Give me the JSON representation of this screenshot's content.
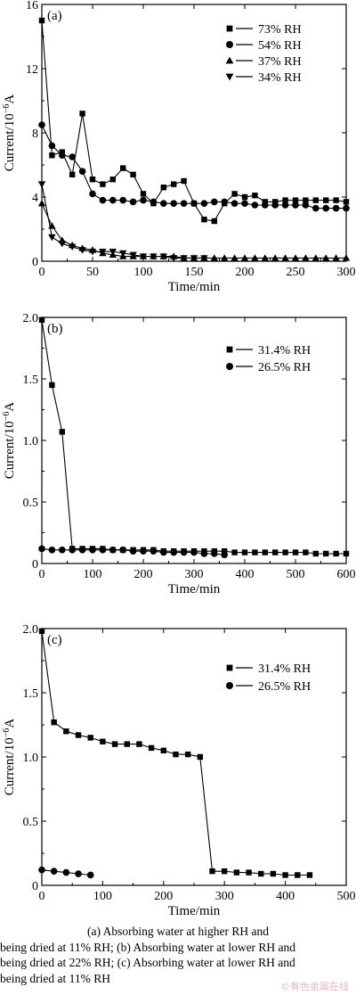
{
  "chart_data": [
    {
      "type": "line",
      "panel_label": "(a)",
      "xlabel": "Time/min",
      "ylabel": "Current/10",
      "ylabel_exp": "−6",
      "ylabel_unit": "A",
      "xlim": [
        0,
        300
      ],
      "ylim": [
        0,
        16
      ],
      "xticks": [
        0,
        50,
        100,
        150,
        200,
        250,
        300
      ],
      "yticks": [
        0,
        4,
        8,
        12,
        16
      ],
      "ytick_labels": [
        "0",
        "4",
        "8",
        "12",
        "16"
      ],
      "legend": "top-right",
      "series": [
        {
          "name": "73% RH",
          "marker": "square",
          "x": [
            0,
            10,
            20,
            30,
            40,
            50,
            60,
            70,
            80,
            90,
            100,
            110,
            120,
            130,
            140,
            150,
            160,
            170,
            180,
            190,
            200,
            210,
            220,
            230,
            240,
            250,
            260,
            270,
            280,
            290,
            300
          ],
          "y": [
            15.0,
            6.6,
            6.8,
            5.4,
            9.2,
            5.1,
            4.8,
            5.1,
            5.8,
            5.4,
            4.2,
            3.6,
            4.6,
            4.8,
            5.0,
            3.6,
            2.6,
            2.5,
            3.6,
            4.2,
            4.0,
            4.1,
            3.7,
            3.7,
            3.8,
            3.8,
            3.8,
            3.8,
            3.8,
            3.8,
            3.7
          ]
        },
        {
          "name": "54% RH",
          "marker": "circle",
          "x": [
            0,
            10,
            20,
            30,
            40,
            50,
            60,
            70,
            80,
            90,
            100,
            110,
            120,
            130,
            140,
            150,
            160,
            170,
            180,
            190,
            200,
            210,
            220,
            230,
            240,
            250,
            260,
            270,
            280,
            290,
            300
          ],
          "y": [
            8.5,
            7.2,
            6.6,
            6.5,
            5.6,
            4.2,
            3.8,
            3.8,
            3.8,
            3.7,
            3.8,
            3.7,
            3.6,
            3.6,
            3.6,
            3.6,
            3.6,
            3.7,
            3.7,
            3.6,
            3.6,
            3.5,
            3.5,
            3.5,
            3.5,
            3.5,
            3.5,
            3.3,
            3.3,
            3.3,
            3.3
          ]
        },
        {
          "name": "37% RH",
          "marker": "triangle-up",
          "x": [
            0,
            10,
            20,
            30,
            40,
            50,
            60,
            70,
            80,
            90,
            100,
            110,
            120,
            130,
            140,
            150,
            160,
            170,
            180,
            190,
            200,
            210,
            220,
            230,
            240,
            250,
            260,
            270,
            280,
            290,
            300
          ],
          "y": [
            3.6,
            2.2,
            1.3,
            1.0,
            0.8,
            0.7,
            0.5,
            0.4,
            0.3,
            0.3,
            0.3,
            0.3,
            0.3,
            0.3,
            0.2,
            0.2,
            0.2,
            0.2,
            0.2,
            0.2,
            0.2,
            0.2,
            0.2,
            0.2,
            0.2,
            0.2,
            0.2,
            0.2,
            0.2,
            0.2,
            0.2
          ]
        },
        {
          "name": "34% RH",
          "marker": "triangle-down",
          "x": [
            0,
            10,
            20,
            30,
            40,
            50,
            60,
            70,
            80,
            90,
            100,
            110,
            120,
            130,
            140,
            150,
            160
          ],
          "y": [
            4.8,
            1.5,
            1.1,
            0.9,
            0.7,
            0.6,
            0.6,
            0.6,
            0.5,
            0.4,
            0.3,
            0.3,
            0.3,
            0.2,
            0.2,
            0.2,
            0.2
          ]
        }
      ]
    },
    {
      "type": "line",
      "panel_label": "(b)",
      "xlabel": "Time/min",
      "ylabel": "Current/10",
      "ylabel_exp": "−6",
      "ylabel_unit": "A",
      "xlim": [
        0,
        600
      ],
      "ylim": [
        0,
        2.0
      ],
      "xticks": [
        0,
        100,
        200,
        300,
        400,
        500,
        600
      ],
      "yticks": [
        0,
        0.5,
        1.0,
        1.5,
        2.0
      ],
      "ytick_labels": [
        "0",
        "0.5",
        "1.0",
        "1.5",
        "2.0"
      ],
      "legend": "top-right",
      "series": [
        {
          "name": "31.4% RH",
          "marker": "square",
          "x": [
            0,
            20,
            40,
            60,
            80,
            100,
            120,
            140,
            160,
            180,
            200,
            220,
            240,
            260,
            280,
            300,
            320,
            340,
            360,
            380,
            400,
            420,
            440,
            460,
            480,
            500,
            520,
            540,
            560,
            580,
            600
          ],
          "y": [
            1.98,
            1.45,
            1.07,
            0.12,
            0.12,
            0.12,
            0.12,
            0.11,
            0.11,
            0.11,
            0.11,
            0.11,
            0.1,
            0.1,
            0.1,
            0.1,
            0.1,
            0.1,
            0.1,
            0.09,
            0.09,
            0.09,
            0.09,
            0.09,
            0.09,
            0.09,
            0.09,
            0.08,
            0.08,
            0.08,
            0.08
          ]
        },
        {
          "name": "26.5% RH",
          "marker": "circle",
          "x": [
            0,
            20,
            40,
            60,
            80,
            100,
            120,
            140,
            160,
            180,
            200,
            220,
            240,
            260,
            280,
            300,
            320,
            340,
            360
          ],
          "y": [
            0.12,
            0.11,
            0.11,
            0.11,
            0.11,
            0.11,
            0.11,
            0.11,
            0.11,
            0.1,
            0.1,
            0.1,
            0.09,
            0.09,
            0.09,
            0.09,
            0.08,
            0.08,
            0.07
          ]
        }
      ]
    },
    {
      "type": "line",
      "panel_label": "(c)",
      "xlabel": "Time/min",
      "ylabel": "Current/10",
      "ylabel_exp": "−6",
      "ylabel_unit": "A",
      "xlim": [
        0,
        500
      ],
      "ylim": [
        0,
        2.0
      ],
      "xticks": [
        0,
        100,
        200,
        300,
        400,
        500
      ],
      "yticks": [
        0,
        0.5,
        1.0,
        1.5,
        2.0
      ],
      "ytick_labels": [
        "0",
        "0.5",
        "1.0",
        "1.5",
        "2.0"
      ],
      "legend": "top-right",
      "series": [
        {
          "name": "31.4% RH",
          "marker": "square",
          "x": [
            0,
            20,
            40,
            60,
            80,
            100,
            120,
            140,
            160,
            180,
            200,
            220,
            240,
            260,
            280,
            300,
            320,
            340,
            360,
            380,
            400,
            420,
            440
          ],
          "y": [
            1.98,
            1.27,
            1.2,
            1.17,
            1.15,
            1.12,
            1.1,
            1.1,
            1.1,
            1.07,
            1.05,
            1.02,
            1.02,
            1.0,
            0.11,
            0.11,
            0.1,
            0.1,
            0.09,
            0.09,
            0.08,
            0.08,
            0.08
          ]
        },
        {
          "name": "26.5% RH",
          "marker": "circle",
          "x": [
            0,
            20,
            40,
            60,
            80
          ],
          "y": [
            0.12,
            0.11,
            0.1,
            0.09,
            0.08
          ]
        }
      ]
    }
  ],
  "caption": {
    "line1": "(a) Absorbing water at higher RH and",
    "line2": "being dried at 11% RH; (b) Absorbing water at lower RH and",
    "line3": "being dried at 22% RH; (c) Absorbing water at lower RH and",
    "line4": "being dried at 11% RH"
  },
  "watermark": "©有色金属在线"
}
